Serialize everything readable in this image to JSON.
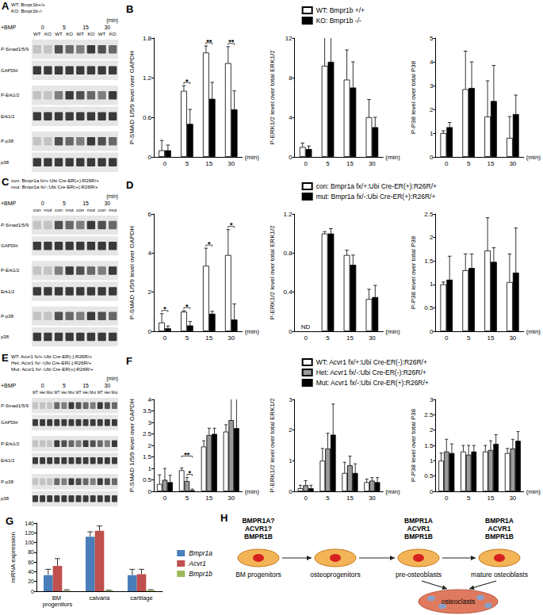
{
  "chart_data": [
    {
      "panel": "B",
      "type": "bar",
      "ylabel": "P-SMAD 1/5/9 level over GAPDH",
      "xlabel": "(min)",
      "categories": [
        "0",
        "5",
        "15",
        "30"
      ],
      "ylim": [
        0,
        1.8
      ],
      "yticks": [
        0,
        0.6,
        1.2,
        1.8
      ],
      "series": [
        {
          "name": "WT: Bmpr1b +/+",
          "color": "#ffffff",
          "values": [
            0.1,
            1.0,
            1.58,
            1.42
          ],
          "errors": [
            0.15,
            0.08,
            0.1,
            0.25
          ]
        },
        {
          "name": "KO: Bmpr1b -/-",
          "color": "#000000",
          "values": [
            0.1,
            0.5,
            0.88,
            0.72
          ],
          "errors": [
            0.08,
            0.22,
            0.25,
            0.28
          ]
        }
      ],
      "annotations": [
        {
          "category": "5",
          "text": "*",
          "pair": [
            0,
            1
          ]
        },
        {
          "category": "15",
          "text": "**",
          "pair": [
            0,
            1
          ]
        },
        {
          "category": "30",
          "text": "**",
          "pair": [
            0,
            1
          ]
        }
      ]
    },
    {
      "type": "bar",
      "ylabel": "P-ERK1/2 level over total ERK1/2",
      "xlabel": "(min)",
      "legend": "top",
      "categories": [
        "0",
        "5",
        "15",
        "30"
      ],
      "ylim": [
        0,
        12
      ],
      "yticks": [
        0,
        4,
        8,
        12
      ],
      "series": [
        {
          "name": "WT: Bmpr1b +/+",
          "color": "#ffffff",
          "values": [
            1.0,
            9.2,
            7.8,
            4.0
          ],
          "errors": [
            0.4,
            4.4,
            3.0,
            1.8
          ]
        },
        {
          "name": "KO: Bmpr1b -/-",
          "color": "#000000",
          "values": [
            0.8,
            9.6,
            7.0,
            3.0
          ],
          "errors": [
            0.3,
            3.4,
            2.6,
            1.0
          ]
        }
      ]
    },
    {
      "type": "bar",
      "ylabel": "P-P38 level over total P38",
      "xlabel": "(min)",
      "categories": [
        "0",
        "5",
        "15",
        "30"
      ],
      "ylim": [
        0,
        5
      ],
      "yticks": [
        0,
        1,
        2,
        3,
        4,
        5
      ],
      "series": [
        {
          "name": "WT: Bmpr1b +/+",
          "color": "#ffffff",
          "values": [
            1.0,
            2.85,
            1.7,
            0.8
          ],
          "errors": [
            0.1,
            1.6,
            1.5,
            0.9
          ]
        },
        {
          "name": "KO: Bmpr1b -/-",
          "color": "#000000",
          "values": [
            1.25,
            2.9,
            2.35,
            1.8
          ],
          "errors": [
            0.2,
            1.1,
            1.5,
            0.8
          ]
        }
      ]
    },
    {
      "panel": "D",
      "type": "bar",
      "ylabel": "P-SMAD 1/5/9 level over GAPDH",
      "xlabel": "(min)",
      "categories": [
        "0",
        "5",
        "15",
        "30"
      ],
      "ylim": [
        0,
        6
      ],
      "yticks": [
        0,
        2,
        4,
        6
      ],
      "series": [
        {
          "name": "con: Bmpr1a fx/+:Ubi Cre-ER(+):R26R/+",
          "color": "#ffffff",
          "values": [
            0.45,
            1.0,
            3.35,
            3.9
          ],
          "errors": [
            0.45,
            0.05,
            0.9,
            1.3
          ]
        },
        {
          "name": "mut: Bmpr1a fx/-:Ubi Cre-ER(+):R26R/+",
          "color": "#000000",
          "values": [
            0.15,
            0.3,
            0.9,
            0.6
          ],
          "errors": [
            0.12,
            0.2,
            0.12,
            0.8
          ]
        }
      ],
      "annotations": [
        {
          "category": "0",
          "text": "*",
          "pair": [
            0,
            1
          ]
        },
        {
          "category": "5",
          "text": "*",
          "pair": [
            0,
            1
          ]
        },
        {
          "category": "15",
          "text": "*",
          "pair": [
            0,
            1
          ]
        },
        {
          "category": "30",
          "text": "*",
          "pair": [
            0,
            1
          ]
        }
      ]
    },
    {
      "type": "bar",
      "ylabel": "P-ERK1/2 level over total ERK1/2",
      "xlabel": "(min)",
      "legend": "top",
      "categories": [
        "0",
        "5",
        "15",
        "30"
      ],
      "ylim": [
        0,
        1.2
      ],
      "yticks": [
        0,
        0.4,
        0.8,
        1.2
      ],
      "series": [
        {
          "name": "con: Bmpr1a fx/+:Ubi Cre-ER(+):R26R/+",
          "color": "#ffffff",
          "values": [
            null,
            1.0,
            0.78,
            0.33
          ],
          "errors": [
            null,
            0.02,
            0.05,
            0.1
          ]
        },
        {
          "name": "mut: Bmpr1a fx/-:Ubi Cre-ER(+):R26R/+",
          "color": "#000000",
          "values": [
            null,
            1.0,
            0.68,
            0.35
          ],
          "errors": [
            null,
            0.05,
            0.1,
            0.12
          ]
        }
      ],
      "annotations": [
        {
          "category": "0",
          "text": "ND"
        }
      ]
    },
    {
      "type": "bar",
      "ylabel": "P-P38 level over total P38",
      "xlabel": "(min)",
      "categories": [
        "0",
        "5",
        "15",
        "30"
      ],
      "ylim": [
        0,
        2.5
      ],
      "yticks": [
        0,
        0.5,
        1,
        1.5,
        2,
        2.5
      ],
      "series": [
        {
          "name": "con: Bmpr1a fx/+:Ubi Cre-ER(+):R26R/+",
          "color": "#ffffff",
          "values": [
            1.0,
            1.3,
            1.72,
            1.05
          ],
          "errors": [
            0.05,
            0.35,
            0.7,
            0.6
          ]
        },
        {
          "name": "mut: Bmpr1a fx/-:Ubi Cre-ER(+):R26R/+",
          "color": "#000000",
          "values": [
            1.1,
            1.35,
            1.48,
            1.25
          ],
          "errors": [
            0.5,
            0.3,
            0.3,
            0.95
          ]
        }
      ]
    },
    {
      "panel": "F",
      "type": "bar",
      "ylabel": "P-SMAD 1/5/9 level over GAPDH",
      "xlabel": "(min)",
      "categories": [
        "0",
        "5",
        "15",
        "30"
      ],
      "ylim": [
        0,
        4
      ],
      "yticks": [
        0,
        0.5,
        1,
        1.5,
        2,
        2.5,
        3,
        3.5,
        4
      ],
      "series": [
        {
          "name": "WT: Acvr1 fx/+:Ubi Cre-ER(-):R26R/+",
          "color": "#ffffff",
          "values": [
            0.32,
            0.92,
            1.95,
            2.6
          ],
          "errors": [
            0.4,
            0.1,
            0.25,
            0.3
          ]
        },
        {
          "name": "Het: Acvr1 fx/-:Ubi Cre-ER(-):R26R/+",
          "color": "#999999",
          "values": [
            0.5,
            0.45,
            2.45,
            3.1
          ],
          "errors": [
            0.5,
            0.15,
            0.3,
            1.0
          ]
        },
        {
          "name": "Mut: Acvr1 fx/-:Ubi Cre-ER(+):R26R/+",
          "color": "#000000",
          "values": [
            0.4,
            0.05,
            2.5,
            2.75
          ],
          "errors": [
            0.3,
            0.05,
            0.25,
            1.6
          ]
        }
      ],
      "annotations": [
        {
          "category": "5",
          "text": "*",
          "pair": [
            1,
            2
          ]
        },
        {
          "category": "5",
          "text": "**",
          "pair": [
            0,
            2
          ]
        }
      ]
    },
    {
      "type": "bar",
      "ylabel": "P-ERK1/2 level over total ERK1/2",
      "xlabel": "(min)",
      "legend": "top",
      "categories": [
        "0",
        "5",
        "15",
        "30"
      ],
      "ylim": [
        0,
        3
      ],
      "yticks": [
        0,
        1,
        2,
        3
      ],
      "series": [
        {
          "name": "WT: Acvr1 fx/+:Ubi Cre-ER(-):R26R/+",
          "color": "#ffffff",
          "values": [
            0.1,
            1.0,
            0.6,
            0.3
          ],
          "errors": [
            0.1,
            0.4,
            0.35,
            0.1
          ]
        },
        {
          "name": "Het: Acvr1 fx/-:Ubi Cre-ER(-):R26R/+",
          "color": "#999999",
          "values": [
            0.2,
            1.4,
            0.85,
            0.35
          ],
          "errors": [
            0.15,
            0.5,
            0.3,
            0.1
          ]
        },
        {
          "name": "Mut: Acvr1 fx/-:Ubi Cre-ER(+):R26R/+",
          "color": "#000000",
          "values": [
            0.1,
            1.85,
            0.6,
            0.3
          ],
          "errors": [
            0.1,
            1.0,
            0.3,
            0.15
          ]
        }
      ]
    },
    {
      "type": "bar",
      "ylabel": "P-P38 level over total P38",
      "xlabel": "(min)",
      "categories": [
        "0",
        "5",
        "15",
        "30"
      ],
      "ylim": [
        0,
        3
      ],
      "yticks": [
        0,
        0.5,
        1,
        1.5,
        2,
        2.5,
        3
      ],
      "series": [
        {
          "name": "WT: Acvr1 fx/+:Ubi Cre-ER(-):R26R/+",
          "color": "#ffffff",
          "values": [
            1.0,
            1.3,
            1.3,
            1.25
          ],
          "errors": [
            0.25,
            0.2,
            0.2,
            0.15
          ]
        },
        {
          "name": "Het: Acvr1 fx/-:Ubi Cre-ER(-):R26R/+",
          "color": "#999999",
          "values": [
            1.3,
            1.2,
            1.35,
            1.4
          ],
          "errors": [
            0.4,
            0.3,
            0.3,
            0.3
          ]
        },
        {
          "name": "Mut: Acvr1 fx/-:Ubi Cre-ER(+):R26R/+",
          "color": "#000000",
          "values": [
            1.25,
            1.3,
            1.55,
            1.65
          ],
          "errors": [
            0.3,
            0.2,
            0.3,
            0.3
          ]
        }
      ]
    },
    {
      "panel": "G",
      "type": "bar",
      "ylabel": "mRNA expression",
      "legend": "right",
      "categories": [
        "BM progenitors",
        "calvaria",
        "cartilage"
      ],
      "ylim": [
        0,
        140
      ],
      "yticks": [
        0,
        20,
        40,
        60,
        80,
        100,
        120,
        140
      ],
      "series": [
        {
          "name": "Bmpr1a",
          "color": "#4a7ebb",
          "values": [
            33,
            112,
            33
          ],
          "errors": [
            12,
            10,
            12
          ]
        },
        {
          "name": "Acvr1",
          "color": "#c0504d",
          "values": [
            52,
            124,
            35
          ],
          "errors": [
            15,
            10,
            10
          ]
        },
        {
          "name": "Bmpr1b",
          "color": "#9bbb59",
          "values": [
            1,
            1.5,
            2
          ],
          "errors": [
            2,
            0.6,
            1.2
          ]
        }
      ]
    }
  ],
  "blots": [
    {
      "panel": "A",
      "genotypes": [
        "WT: Bmpr1b+/+",
        "KO: Bmpr1b-/-"
      ],
      "treatment": "+BMP",
      "times": [
        "0",
        "5",
        "15",
        "30"
      ],
      "time_unit": "(min)",
      "lanes": [
        "WT",
        "KO"
      ],
      "rows": [
        "P-Smad1/5/9",
        "GAPDH",
        "P-Erk1/2",
        "Erk1/2",
        "P-p38",
        "p38"
      ]
    },
    {
      "panel": "C",
      "genotypes": [
        "con: Bmpr1a fx/+:Ubi Cre-ER(+):R26R/+",
        "mut: Bmpr1a fx/-:Ubi Cre-ER(+):R26R/+"
      ],
      "treatment": "+BMP",
      "times": [
        "0",
        "5",
        "15",
        "30"
      ],
      "time_unit": "(min)",
      "lanes": [
        "con",
        "mut"
      ],
      "rows": [
        "P-Smad1/5/9",
        "GAPDH",
        "P-Erk1/2",
        "Erk1/2",
        "P-p38",
        "p38"
      ]
    },
    {
      "panel": "E",
      "genotypes": [
        "WT: Acvr1 fx/+:Ubi Cre-ER(-):R26R/+",
        "Het: Acvr1 fx/-:Ubi Cre-ER(-):R26R/+",
        "Mut: Acvr1 fx/-:Ubi Cre-ER(+):R26R/+"
      ],
      "treatment": "+BMP",
      "times": [
        "0",
        "5",
        "15",
        "30"
      ],
      "time_unit": "(min)",
      "lanes": [
        "WT",
        "Het",
        "Mut"
      ],
      "rows": [
        "P-Smad1/5/9",
        "GAPDH",
        "P-Erk1/2",
        "Erk1/2",
        "P-p38",
        "p38"
      ]
    }
  ],
  "diagram": {
    "panel": "H",
    "stages": [
      {
        "label": "BM progenitors",
        "receptors": [
          "BMPR1A?",
          "ACVR1?",
          "BMPR1B"
        ]
      },
      {
        "label": "osteoprogenitors",
        "receptors": []
      },
      {
        "label": "pre-osteoblasts",
        "receptors": [
          "BMPR1A",
          "ACVR1",
          "BMPR1B"
        ]
      },
      {
        "label": "mature osteoblasts",
        "receptors": [
          "BMPR1A",
          "ACVR1",
          "BMPR1B"
        ]
      }
    ],
    "target": "osteoclasts"
  }
}
